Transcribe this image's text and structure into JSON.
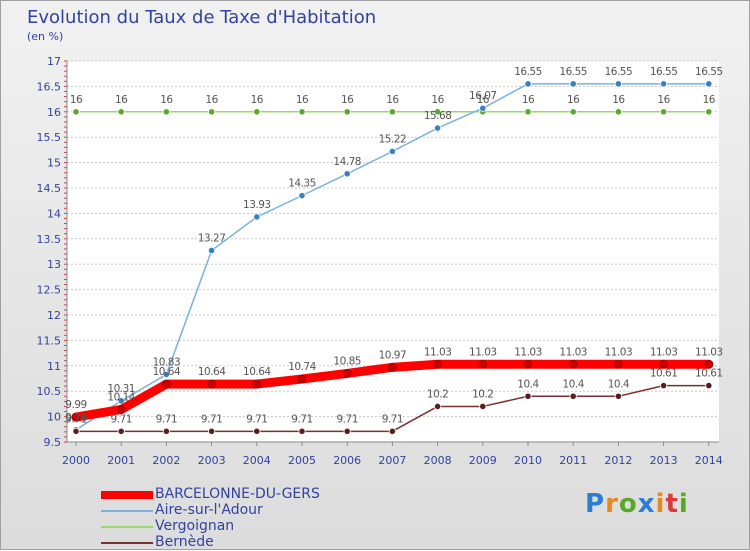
{
  "title": "Evolution du Taux de Taxe d'Habitation",
  "unit_label": "(en %)",
  "logo": {
    "letters": [
      "P",
      "r",
      "o",
      "x",
      "i",
      "t",
      "i"
    ],
    "colors": [
      "#2a7fd4",
      "#e8891c",
      "#5aa82a",
      "#2a7fd4",
      "#e8891c",
      "#d93a3a",
      "#5aa82a"
    ]
  },
  "chart_data": {
    "type": "line",
    "title": "Evolution du Taux de Taxe d'Habitation",
    "ylabel": "(en %)",
    "xlabel": "",
    "x": [
      "2000",
      "2001",
      "2002",
      "2003",
      "2004",
      "2005",
      "2006",
      "2007",
      "2008",
      "2009",
      "2010",
      "2011",
      "2012",
      "2013",
      "2014"
    ],
    "ylim": [
      9.5,
      17
    ],
    "yticks": [
      "9.5",
      "10",
      "10.5",
      "11",
      "11.5",
      "12",
      "12.5",
      "13",
      "13.5",
      "14",
      "14.5",
      "15",
      "15.5",
      "16",
      "16.5",
      "17"
    ],
    "grid": "horizontal",
    "legend_position": "bottom-left",
    "series": [
      {
        "name": "BARCELONNE-DU-GERS",
        "color": "#ff0000",
        "marker": "#cc0000",
        "values": [
          9.99,
          10.14,
          10.64,
          10.64,
          10.64,
          10.74,
          10.85,
          10.97,
          11.03,
          11.03,
          11.03,
          11.03,
          11.03,
          11.03,
          11.03
        ],
        "labels": [
          "9.99",
          "10.14",
          "10.64",
          "10.64",
          "10.64",
          "10.74",
          "10.85",
          "10.97",
          "11.03",
          "11.03",
          "11.03",
          "11.03",
          "11.03",
          "11.03",
          "11.03"
        ]
      },
      {
        "name": "Aire-sur-l'Adour",
        "color": "#7ab2dc",
        "marker": "#3a7fc0",
        "values": [
          9.74,
          10.31,
          10.83,
          13.27,
          13.93,
          14.35,
          14.78,
          15.22,
          15.68,
          16.07,
          16.55,
          16.55,
          16.55,
          16.55,
          16.55
        ],
        "labels": [
          "9.74",
          "10.31",
          "10.83",
          "13.27",
          "13.93",
          "14.35",
          "14.78",
          "15.22",
          "15.68",
          "16.07",
          "16.55",
          "16.55",
          "16.55",
          "16.55",
          "16.55"
        ]
      },
      {
        "name": "Vergoignan",
        "color": "#9bd86b",
        "marker": "#5aa82a",
        "values": [
          16,
          16,
          16,
          16,
          16,
          16,
          16,
          16,
          16,
          16,
          16,
          16,
          16,
          16,
          16
        ],
        "labels": [
          "16",
          "16",
          "16",
          "16",
          "16",
          "16",
          "16",
          "16",
          "16",
          "16",
          "16",
          "16",
          "16",
          "16",
          "16"
        ]
      },
      {
        "name": "Bernède",
        "color": "#7a3030",
        "marker": "#5a1e1e",
        "values": [
          9.71,
          9.71,
          9.71,
          9.71,
          9.71,
          9.71,
          9.71,
          9.71,
          10.2,
          10.2,
          10.4,
          10.4,
          10.4,
          10.61,
          10.61
        ],
        "labels": [
          "9.71",
          "9.71",
          "9.71",
          "9.71",
          "9.71",
          "9.71",
          "9.71",
          "9.71",
          "10.2",
          "10.2",
          "10.4",
          "10.4",
          "10.4",
          "10.61",
          "10.61"
        ]
      }
    ]
  }
}
